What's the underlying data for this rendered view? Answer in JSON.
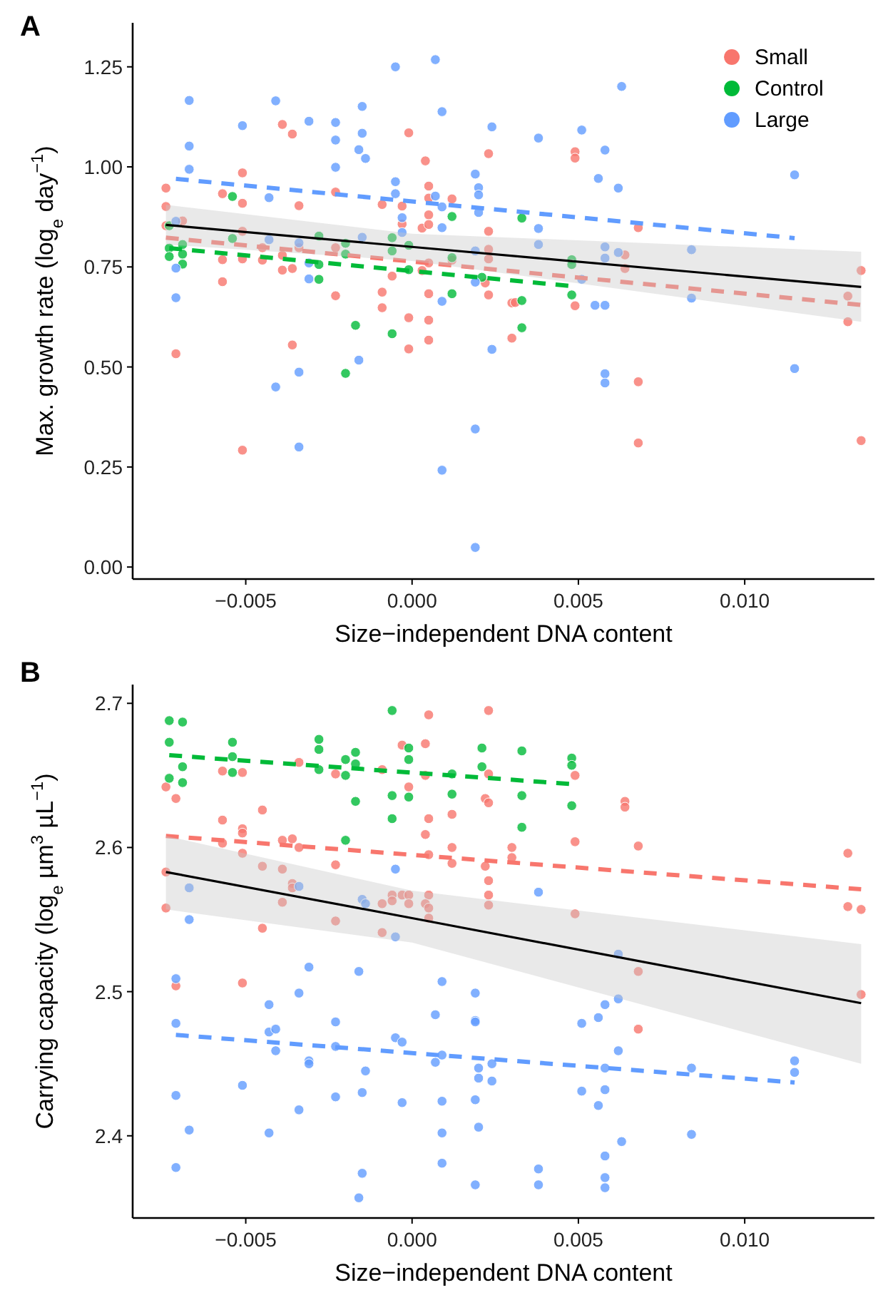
{
  "chart_data": [
    {
      "type": "scatter",
      "title": "A",
      "xlabel": "Size−independent DNA content",
      "ylabel": "Max. growth rate (log$_{e}$ day$^{−1}$)",
      "marker": "circle",
      "legend": "top right",
      "xlim": [
        -0.0084,
        0.0139
      ],
      "xticks": [
        {
          "value": -0.005,
          "label": "−0.005"
        },
        {
          "value": 0,
          "label": "0.000"
        },
        {
          "value": 0.005,
          "label": "0.005"
        },
        {
          "value": 0.01,
          "label": "0.010"
        }
      ],
      "ylim": [
        -0.03,
        1.36
      ],
      "yticks": [
        {
          "value": 0,
          "label": "0.00"
        },
        {
          "value": 0.25,
          "label": "0.25"
        },
        {
          "value": 0.5,
          "label": "0.50"
        },
        {
          "value": 0.75,
          "label": "0.75"
        },
        {
          "value": 1,
          "label": "1.00"
        },
        {
          "value": 1.25,
          "label": "1.25"
        }
      ],
      "series": [
        {
          "name": "Small",
          "color": "#f8766d",
          "x": [
            -0.0074,
            -0.0074,
            -0.0074,
            -0.0071,
            -0.0069,
            -0.0057,
            -0.0051,
            -0.0051,
            -0.0051,
            -0.0051,
            -0.0057,
            -0.0057,
            -0.0051,
            -0.0039,
            -0.0036,
            -0.0034,
            -0.0034,
            -0.0039,
            -0.0039,
            -0.0036,
            -0.0036,
            -0.0045,
            -0.0045,
            -0.0023,
            -0.0023,
            -0.0023,
            -0.0009,
            -0.0009,
            -0.0009,
            -0.0006,
            -0.0001,
            -0.0003,
            -0.0003,
            -0.0001,
            -0.0001,
            0.0004,
            0.0005,
            0.0005,
            0.0005,
            0.0003,
            0.0005,
            0.0005,
            0.0003,
            0.0005,
            0.0005,
            0.0005,
            0.0012,
            0.0012,
            0.0023,
            0.0023,
            0.0023,
            0.0023,
            0.0022,
            0.0023,
            0.003,
            0.003,
            0.0049,
            0.0049,
            0.0068,
            0.0064,
            0.0064,
            0.0049,
            0.0031,
            0.0068,
            0.0068,
            0.0135,
            0.0131,
            0.0131,
            0.0135
          ],
          "values": [
            0.947,
            0.901,
            0.853,
            0.533,
            0.865,
            0.933,
            0.985,
            0.909,
            0.839,
            0.77,
            0.768,
            0.713,
            0.292,
            1.106,
            1.082,
            0.903,
            0.798,
            0.779,
            0.742,
            0.746,
            0.555,
            0.767,
            0.798,
            0.937,
            0.798,
            0.678,
            0.906,
            0.687,
            0.648,
            0.727,
            1.085,
            0.902,
            0.857,
            0.623,
            0.545,
            1.015,
            0.952,
            0.922,
            0.88,
            0.847,
            0.856,
            0.76,
            0.741,
            0.683,
            0.617,
            0.567,
            0.92,
            0.767,
            1.033,
            0.839,
            0.794,
            0.77,
            0.71,
            0.68,
            0.66,
            0.572,
            1.038,
            1.022,
            0.848,
            0.78,
            0.746,
            0.653,
            0.661,
            0.463,
            0.31,
            0.741,
            0.677,
            0.613,
            0.316
          ]
        },
        {
          "name": "Control",
          "color": "#00ba38",
          "x": [
            -0.0073,
            -0.0073,
            -0.0073,
            -0.0069,
            -0.0069,
            -0.0069,
            -0.0054,
            -0.0054,
            -0.0028,
            -0.0028,
            -0.0028,
            -0.002,
            -0.002,
            -0.0017,
            -0.002,
            -0.0006,
            -0.0006,
            -0.0006,
            -0.0001,
            -0.0001,
            0.0012,
            0.0012,
            0.0012,
            0.0033,
            0.0033,
            0.0033,
            0.0048,
            0.0048,
            0.0048,
            0.0021
          ],
          "values": [
            0.853,
            0.797,
            0.776,
            0.806,
            0.782,
            0.757,
            0.926,
            0.821,
            0.827,
            0.756,
            0.719,
            0.809,
            0.782,
            0.604,
            0.484,
            0.823,
            0.79,
            0.583,
            0.804,
            0.743,
            0.876,
            0.773,
            0.683,
            0.872,
            0.666,
            0.598,
            0.768,
            0.756,
            0.68,
            0.724
          ]
        },
        {
          "name": "Large",
          "color": "#619cff",
          "x": [
            -0.0067,
            -0.0067,
            -0.0067,
            -0.0071,
            -0.0071,
            -0.0071,
            -0.0051,
            -0.0041,
            -0.0043,
            -0.0043,
            -0.0041,
            -0.0034,
            -0.0034,
            -0.0034,
            -0.0031,
            -0.0031,
            -0.0031,
            -0.0023,
            -0.0023,
            -0.0023,
            -0.0016,
            -0.0015,
            -0.0015,
            -0.0014,
            -0.0015,
            -0.0016,
            -0.0005,
            -0.0005,
            -0.0005,
            -0.0003,
            -0.0003,
            0.0007,
            0.0009,
            0.0007,
            0.0009,
            0.0009,
            0.0009,
            0.0009,
            0.0019,
            0.0019,
            0.0019,
            0.002,
            0.002,
            0.002,
            0.0024,
            0.0024,
            0.0019,
            0.0019,
            0.0038,
            0.0038,
            0.0038,
            0.0051,
            0.0058,
            0.0056,
            0.0062,
            0.0063,
            0.0058,
            0.0058,
            0.0062,
            0.0051,
            0.0055,
            0.0058,
            0.0058,
            0.0058,
            0.0084,
            0.0084,
            0.0115,
            0.0115
          ],
          "values": [
            1.166,
            1.052,
            0.994,
            0.747,
            0.673,
            0.864,
            1.103,
            1.165,
            0.923,
            0.818,
            0.45,
            0.487,
            0.3,
            0.81,
            1.114,
            0.76,
            0.72,
            1.111,
            1.067,
            0.999,
            1.043,
            1.151,
            1.084,
            1.021,
            0.824,
            0.517,
            1.25,
            0.963,
            0.933,
            0.873,
            0.836,
            1.268,
            1.138,
            0.927,
            0.9,
            0.848,
            0.664,
            0.242,
            0.345,
            0.049,
            0.982,
            0.948,
            0.93,
            0.886,
            1.1,
            0.544,
            0.79,
            0.712,
            1.072,
            0.846,
            0.806,
            1.092,
            1.042,
            0.971,
            0.947,
            1.201,
            0.8,
            0.772,
            0.786,
            0.719,
            0.654,
            0.654,
            0.483,
            0.46,
            0.793,
            0.672,
            0.98,
            0.496
          ]
        },
        {
          "type": "line",
          "marker": "none",
          "line_style": "dashed",
          "color": "#f8766d",
          "x": [
            -0.0074,
            0.0135
          ],
          "values": [
            0.823,
            0.655
          ]
        },
        {
          "type": "line",
          "marker": "none",
          "line_style": "dashed",
          "color": "#00ba38",
          "x": [
            -0.0073,
            0.0048
          ],
          "values": [
            0.797,
            0.702
          ]
        },
        {
          "type": "line",
          "marker": "none",
          "line_style": "dashed",
          "color": "#619cff",
          "x": [
            -0.0071,
            0.0115
          ],
          "values": [
            0.97,
            0.822
          ]
        },
        {
          "type": "line",
          "marker": "none",
          "line_style": "solid",
          "color": "#000000",
          "x": [
            -0.0074,
            0,
            0.0135
          ],
          "values": [
            0.855,
            0.8,
            0.7
          ],
          "lower": [
            0.806,
            0.765,
            0.613
          ],
          "upper": [
            0.905,
            0.833,
            0.788
          ]
        }
      ]
    },
    {
      "type": "scatter",
      "title": "B",
      "xlabel": "Size−independent DNA content",
      "ylabel": "Carrying capacity (log$_{e}$ µm$^{3}$ µL$^{−1}$)",
      "marker": "circle",
      "xlim": [
        -0.0084,
        0.0139
      ],
      "xticks": [
        {
          "value": -0.005,
          "label": "−0.005"
        },
        {
          "value": 0,
          "label": "0.000"
        },
        {
          "value": 0.005,
          "label": "0.005"
        },
        {
          "value": 0.01,
          "label": "0.010"
        }
      ],
      "ylim": [
        2.343,
        2.713
      ],
      "yticks": [
        2.4,
        2.5,
        2.6,
        2.7
      ],
      "series": [
        {
          "color": "#f8766d",
          "x": [
            -0.0074,
            -0.0071,
            -0.0074,
            -0.0074,
            -0.0071,
            -0.0057,
            -0.0051,
            -0.0057,
            -0.0057,
            -0.0051,
            -0.0051,
            -0.0051,
            -0.0051,
            -0.0045,
            -0.0045,
            -0.0045,
            -0.0039,
            -0.0036,
            -0.0034,
            -0.0039,
            -0.0036,
            -0.0036,
            -0.0039,
            -0.0034,
            -0.0023,
            -0.0023,
            -0.0023,
            -0.0009,
            -0.0009,
            -0.0009,
            -0.0006,
            -0.0006,
            -0.0003,
            -0.0001,
            -0.0001,
            -0.0003,
            -0.0001,
            0.0004,
            0.0004,
            0.0005,
            0.0004,
            0.0005,
            0.0005,
            0.0005,
            0.0004,
            0.0005,
            0.0005,
            0.0012,
            0.0012,
            0.0012,
            0.0023,
            0.0023,
            0.0022,
            0.0023,
            0.0022,
            0.0023,
            0.0023,
            0.0023,
            0.003,
            0.003,
            0.0068,
            0.0064,
            0.0064,
            0.0049,
            0.0049,
            0.0049,
            0.0068,
            0.0068,
            0.0131,
            0.0131,
            0.0135,
            0.0135
          ],
          "values": [
            2.642,
            2.634,
            2.583,
            2.558,
            2.504,
            2.653,
            2.652,
            2.619,
            2.603,
            2.613,
            2.61,
            2.596,
            2.506,
            2.626,
            2.587,
            2.544,
            2.605,
            2.606,
            2.6,
            2.585,
            2.575,
            2.572,
            2.562,
            2.659,
            2.651,
            2.588,
            2.549,
            2.654,
            2.561,
            2.541,
            2.567,
            2.563,
            2.567,
            2.567,
            2.561,
            2.671,
            2.642,
            2.672,
            2.65,
            2.692,
            2.609,
            2.62,
            2.595,
            2.567,
            2.561,
            2.558,
            2.551,
            2.623,
            2.6,
            2.589,
            2.695,
            2.651,
            2.634,
            2.631,
            2.587,
            2.577,
            2.567,
            2.56,
            2.6,
            2.593,
            2.601,
            2.632,
            2.628,
            2.65,
            2.604,
            2.554,
            2.514,
            2.474,
            2.596,
            2.559,
            2.557,
            2.498
          ]
        },
        {
          "color": "#00ba38",
          "x": [
            -0.0073,
            -0.0069,
            -0.0073,
            -0.0069,
            -0.0073,
            -0.0069,
            -0.0054,
            -0.0054,
            -0.0054,
            -0.0028,
            -0.0028,
            -0.0028,
            -0.002,
            -0.0017,
            -0.0017,
            -0.002,
            -0.0017,
            -0.002,
            -0.0006,
            -0.0001,
            -0.0001,
            -0.0006,
            -0.0001,
            -0.0006,
            0.0021,
            0.0021,
            0.0012,
            0.0012,
            0.0033,
            0.0033,
            0.0033,
            0.0048,
            0.0048,
            0.0048
          ],
          "values": [
            2.688,
            2.687,
            2.673,
            2.656,
            2.648,
            2.645,
            2.673,
            2.663,
            2.652,
            2.675,
            2.668,
            2.654,
            2.661,
            2.666,
            2.658,
            2.65,
            2.632,
            2.605,
            2.695,
            2.669,
            2.661,
            2.636,
            2.635,
            2.62,
            2.669,
            2.656,
            2.651,
            2.637,
            2.667,
            2.636,
            2.614,
            2.662,
            2.657,
            2.629
          ]
        },
        {
          "color": "#619cff",
          "x": [
            -0.0071,
            -0.0071,
            -0.0071,
            -0.0071,
            -0.0067,
            -0.0067,
            -0.0067,
            -0.0051,
            -0.0043,
            -0.0043,
            -0.0041,
            -0.0041,
            -0.0043,
            -0.0034,
            -0.0034,
            -0.0031,
            -0.0031,
            -0.0031,
            -0.0034,
            -0.0023,
            -0.0023,
            -0.0023,
            -0.0016,
            -0.0015,
            -0.0014,
            -0.0014,
            -0.0015,
            -0.0015,
            -0.0016,
            -0.0005,
            -0.0005,
            -0.0005,
            -0.0003,
            -0.0003,
            0.0007,
            0.0009,
            0.0009,
            0.0007,
            0.0009,
            0.0009,
            0.0009,
            0.0019,
            0.0019,
            0.0019,
            0.002,
            0.002,
            0.0024,
            0.0024,
            0.0019,
            0.002,
            0.0019,
            0.0038,
            0.0062,
            0.0062,
            0.0058,
            0.0056,
            0.0051,
            0.0062,
            0.0058,
            0.0051,
            0.0058,
            0.0056,
            0.0063,
            0.0058,
            0.0058,
            0.0058,
            0.0038,
            0.0038,
            0.0084,
            0.0084,
            0.0115,
            0.0115
          ],
          "values": [
            2.509,
            2.478,
            2.428,
            2.378,
            2.572,
            2.55,
            2.404,
            2.435,
            2.491,
            2.472,
            2.474,
            2.459,
            2.402,
            2.573,
            2.499,
            2.517,
            2.452,
            2.45,
            2.418,
            2.479,
            2.462,
            2.427,
            2.514,
            2.564,
            2.561,
            2.445,
            2.43,
            2.374,
            2.357,
            2.585,
            2.538,
            2.468,
            2.465,
            2.423,
            2.484,
            2.507,
            2.456,
            2.451,
            2.424,
            2.402,
            2.381,
            2.499,
            2.48,
            2.479,
            2.447,
            2.44,
            2.45,
            2.438,
            2.425,
            2.406,
            2.366,
            2.569,
            2.526,
            2.495,
            2.491,
            2.482,
            2.478,
            2.459,
            2.447,
            2.431,
            2.432,
            2.421,
            2.396,
            2.386,
            2.371,
            2.364,
            2.377,
            2.366,
            2.447,
            2.401,
            2.452,
            2.444
          ]
        },
        {
          "type": "line",
          "marker": "none",
          "line_style": "dashed",
          "color": "#f8766d",
          "x": [
            -0.0074,
            0.0135
          ],
          "values": [
            2.608,
            2.571
          ]
        },
        {
          "type": "line",
          "marker": "none",
          "line_style": "dashed",
          "color": "#00ba38",
          "x": [
            -0.0073,
            0.0048
          ],
          "values": [
            2.664,
            2.644
          ]
        },
        {
          "type": "line",
          "marker": "none",
          "line_style": "dashed",
          "color": "#619cff",
          "x": [
            -0.0071,
            0.0115
          ],
          "values": [
            2.47,
            2.437
          ]
        },
        {
          "type": "line",
          "marker": "none",
          "line_style": "solid",
          "color": "#000000",
          "x": [
            -0.0074,
            0,
            0.0135
          ],
          "values": [
            2.583,
            2.551,
            2.492
          ],
          "lower": [
            2.557,
            2.534,
            2.45
          ],
          "upper": [
            2.608,
            2.57,
            2.533
          ]
        }
      ]
    }
  ]
}
